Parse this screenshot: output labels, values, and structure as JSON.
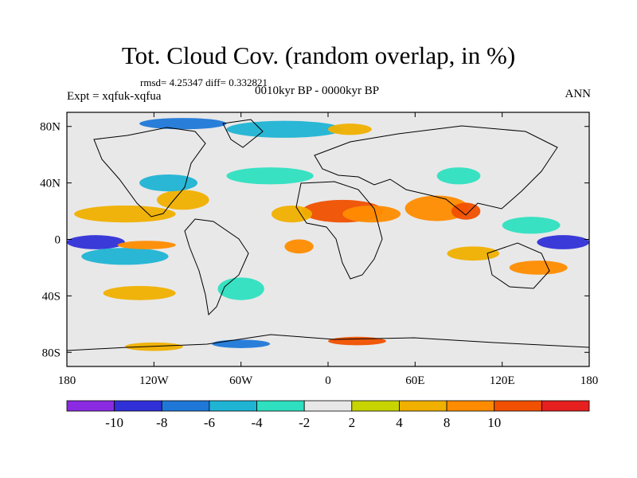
{
  "chart_data": {
    "type": "heatmap",
    "title": "Tot. Cloud Cov. (random overlap, in %)",
    "stats": "rmsd= 4.25347 diff= 0.332821",
    "experiment": "Expt = xqfuk-xqfua",
    "period": "0010kyr BP - 0000kyr BP",
    "season": "ANN",
    "xlim": [
      -180,
      180
    ],
    "ylim": [
      -90,
      90
    ],
    "x_ticks": [
      {
        "value": -180,
        "label": "180"
      },
      {
        "value": -120,
        "label": "120W"
      },
      {
        "value": -60,
        "label": "60W"
      },
      {
        "value": 0,
        "label": "0"
      },
      {
        "value": 60,
        "label": "60E"
      },
      {
        "value": 120,
        "label": "120E"
      },
      {
        "value": 180,
        "label": "180"
      }
    ],
    "y_ticks": [
      {
        "value": 80,
        "label": "80N"
      },
      {
        "value": 40,
        "label": "40N"
      },
      {
        "value": 0,
        "label": "0"
      },
      {
        "value": -40,
        "label": "40S"
      },
      {
        "value": -80,
        "label": "80S"
      }
    ],
    "colorbar": {
      "levels": [
        -12,
        -10,
        -8,
        -6,
        -4,
        -2,
        2,
        4,
        8,
        10,
        12
      ],
      "labels": [
        "-10",
        "-8",
        "-6",
        "-4",
        "-2",
        "2",
        "4",
        "8",
        "10"
      ],
      "label_levels": [
        -10,
        -8,
        -6,
        -4,
        -2,
        2,
        4,
        8,
        10
      ],
      "colors": [
        "#8a2be2",
        "#3030d8",
        "#1f78d8",
        "#1fb4d4",
        "#2ee0c0",
        "#e8e8e8",
        "#c8d400",
        "#f0b000",
        "#ff8c00",
        "#f05000",
        "#e61f1f"
      ]
    },
    "anomalies": [
      {
        "lon": 10,
        "lat": 20,
        "rlon": 28,
        "rlat": 8,
        "value": 10
      },
      {
        "lon": 30,
        "lat": 18,
        "rlon": 20,
        "rlat": 6,
        "value": 8
      },
      {
        "lon": 75,
        "lat": 22,
        "rlon": 22,
        "rlat": 9,
        "value": 8
      },
      {
        "lon": 95,
        "lat": 20,
        "rlon": 10,
        "rlat": 6,
        "value": 10
      },
      {
        "lon": -25,
        "lat": 18,
        "rlon": 14,
        "rlat": 6,
        "value": 4
      },
      {
        "lon": -140,
        "lat": 18,
        "rlon": 35,
        "rlat": 6,
        "value": 4
      },
      {
        "lon": -100,
        "lat": 28,
        "rlon": 18,
        "rlat": 7,
        "value": 4
      },
      {
        "lon": -160,
        "lat": -2,
        "rlon": 20,
        "rlat": 5,
        "value": -10
      },
      {
        "lon": -140,
        "lat": -12,
        "rlon": 30,
        "rlat": 6,
        "value": -6
      },
      {
        "lon": -125,
        "lat": -4,
        "rlon": 20,
        "rlat": 3,
        "value": 8
      },
      {
        "lon": 162,
        "lat": -2,
        "rlon": 18,
        "rlat": 5,
        "value": -10
      },
      {
        "lon": 140,
        "lat": 10,
        "rlon": 20,
        "rlat": 6,
        "value": -4
      },
      {
        "lon": 145,
        "lat": -20,
        "rlon": 20,
        "rlat": 5,
        "value": 8
      },
      {
        "lon": 100,
        "lat": -10,
        "rlon": 18,
        "rlat": 5,
        "value": 4
      },
      {
        "lon": -60,
        "lat": -35,
        "rlon": 16,
        "rlat": 8,
        "value": -4
      },
      {
        "lon": -130,
        "lat": -38,
        "rlon": 25,
        "rlat": 5,
        "value": 4
      },
      {
        "lon": -20,
        "lat": -5,
        "rlon": 10,
        "rlat": 5,
        "value": 8
      },
      {
        "lon": -40,
        "lat": 45,
        "rlon": 30,
        "rlat": 6,
        "value": -4
      },
      {
        "lon": -110,
        "lat": 40,
        "rlon": 20,
        "rlat": 6,
        "value": -6
      },
      {
        "lon": 90,
        "lat": 45,
        "rlon": 15,
        "rlat": 6,
        "value": -4
      },
      {
        "lon": -30,
        "lat": 78,
        "rlon": 40,
        "rlat": 6,
        "value": -6
      },
      {
        "lon": 15,
        "lat": 78,
        "rlon": 15,
        "rlat": 4,
        "value": 4
      },
      {
        "lon": -100,
        "lat": 82,
        "rlon": 30,
        "rlat": 4,
        "value": -8
      },
      {
        "lon": 20,
        "lat": -72,
        "rlon": 20,
        "rlat": 3,
        "value": 10
      },
      {
        "lon": -60,
        "lat": -74,
        "rlon": 20,
        "rlat": 3,
        "value": -8
      },
      {
        "lon": -120,
        "lat": -76,
        "rlon": 20,
        "rlat": 3,
        "value": 4
      }
    ]
  }
}
